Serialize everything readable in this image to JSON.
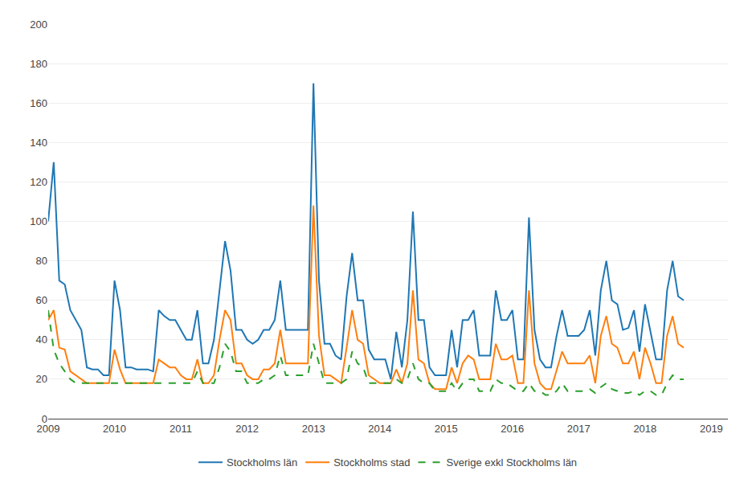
{
  "chart_data": {
    "type": "line",
    "x": [
      2009.0,
      2009.0833333333333,
      2009.1666666666667,
      2009.25,
      2009.3333333333333,
      2009.4166666666667,
      2009.5,
      2009.5833333333333,
      2009.6666666666667,
      2009.75,
      2009.8333333333333,
      2009.9166666666667,
      2010.0,
      2010.0833333333333,
      2010.1666666666667,
      2010.25,
      2010.3333333333333,
      2010.4166666666667,
      2010.5,
      2010.5833333333333,
      2010.6666666666667,
      2010.75,
      2010.8333333333333,
      2010.9166666666667,
      2011.0,
      2011.0833333333333,
      2011.1666666666667,
      2011.25,
      2011.3333333333333,
      2011.4166666666667,
      2011.5,
      2011.5833333333333,
      2011.6666666666667,
      2011.75,
      2011.8333333333333,
      2011.9166666666667,
      2012.0,
      2012.0833333333333,
      2012.1666666666667,
      2012.25,
      2012.3333333333333,
      2012.4166666666667,
      2012.5,
      2012.5833333333333,
      2012.6666666666667,
      2012.75,
      2012.8333333333333,
      2012.9166666666667,
      2013.0,
      2013.0833333333333,
      2013.1666666666667,
      2013.25,
      2013.3333333333333,
      2013.4166666666667,
      2013.5,
      2013.5833333333333,
      2013.6666666666667,
      2013.75,
      2013.8333333333333,
      2013.9166666666667,
      2014.0,
      2014.0833333333333,
      2014.1666666666667,
      2014.25,
      2014.3333333333333,
      2014.4166666666667,
      2014.5,
      2014.5833333333333,
      2014.6666666666667,
      2014.75,
      2014.8333333333333,
      2014.9166666666667,
      2015.0,
      2015.0833333333333,
      2015.1666666666667,
      2015.25,
      2015.3333333333333,
      2015.4166666666667,
      2015.5,
      2015.5833333333333,
      2015.6666666666667,
      2015.75,
      2015.8333333333333,
      2015.9166666666667,
      2016.0,
      2016.0833333333333,
      2016.1666666666667,
      2016.25,
      2016.3333333333333,
      2016.4166666666667,
      2016.5,
      2016.5833333333333,
      2016.6666666666667,
      2016.75,
      2016.8333333333333,
      2016.9166666666667,
      2017.0,
      2017.0833333333333,
      2017.1666666666667,
      2017.25,
      2017.3333333333333,
      2017.4166666666667,
      2017.5,
      2017.5833333333333,
      2017.6666666666667,
      2017.75,
      2017.8333333333333,
      2017.9166666666667,
      2018.0,
      2018.0833333333333,
      2018.1666666666667,
      2018.25,
      2018.3333333333333,
      2018.4166666666667,
      2018.5,
      2018.5833333333333
    ],
    "series": [
      {
        "name": "Stockholms län",
        "line_style": "solid",
        "values": [
          100,
          130,
          70,
          68,
          55,
          50,
          45,
          26,
          25,
          25,
          22,
          22,
          70,
          55,
          26,
          26,
          25,
          25,
          25,
          24,
          55,
          52,
          50,
          50,
          45,
          40,
          40,
          55,
          28,
          28,
          40,
          65,
          90,
          75,
          45,
          45,
          40,
          38,
          40,
          45,
          45,
          50,
          70,
          45,
          45,
          45,
          45,
          45,
          170,
          70,
          38,
          38,
          32,
          30,
          62,
          84,
          60,
          60,
          35,
          30,
          30,
          30,
          20,
          44,
          26,
          50,
          105,
          50,
          50,
          26,
          22,
          22,
          22,
          45,
          26,
          50,
          50,
          55,
          32,
          32,
          32,
          65,
          50,
          50,
          55,
          30,
          30,
          102,
          45,
          30,
          26,
          26,
          42,
          55,
          42,
          42,
          42,
          45,
          55,
          32,
          65,
          80,
          60,
          58,
          45,
          46,
          55,
          34,
          58,
          44,
          30,
          30,
          65,
          80,
          62,
          60
        ]
      },
      {
        "name": "Stockholms stad",
        "line_style": "solid",
        "values": [
          50,
          55,
          36,
          35,
          24,
          22,
          20,
          18,
          18,
          18,
          18,
          18,
          35,
          25,
          18,
          18,
          18,
          18,
          18,
          18,
          30,
          28,
          26,
          26,
          22,
          20,
          20,
          30,
          18,
          18,
          22,
          40,
          55,
          50,
          28,
          28,
          22,
          20,
          20,
          25,
          25,
          28,
          45,
          28,
          28,
          28,
          28,
          28,
          108,
          42,
          22,
          22,
          20,
          18,
          36,
          55,
          40,
          38,
          22,
          20,
          18,
          18,
          18,
          25,
          18,
          28,
          65,
          30,
          28,
          18,
          15,
          15,
          15,
          26,
          18,
          28,
          32,
          30,
          20,
          20,
          20,
          38,
          30,
          30,
          32,
          18,
          18,
          65,
          28,
          18,
          15,
          15,
          25,
          34,
          28,
          28,
          28,
          28,
          32,
          18,
          42,
          52,
          38,
          36,
          28,
          28,
          34,
          20,
          36,
          28,
          18,
          18,
          42,
          52,
          38,
          36
        ]
      },
      {
        "name": "Sverige exkl Stockholms län",
        "line_style": "dashed",
        "values": [
          55,
          35,
          28,
          24,
          20,
          18,
          18,
          18,
          18,
          18,
          18,
          18,
          18,
          18,
          18,
          18,
          18,
          18,
          18,
          18,
          18,
          18,
          18,
          18,
          18,
          18,
          18,
          24,
          18,
          18,
          18,
          26,
          38,
          34,
          24,
          24,
          18,
          18,
          18,
          20,
          20,
          22,
          32,
          22,
          22,
          22,
          22,
          22,
          38,
          28,
          18,
          18,
          18,
          18,
          20,
          34,
          28,
          26,
          18,
          18,
          18,
          18,
          18,
          20,
          18,
          20,
          28,
          20,
          18,
          18,
          14,
          14,
          14,
          18,
          14,
          18,
          20,
          20,
          14,
          14,
          14,
          20,
          18,
          18,
          16,
          14,
          14,
          18,
          14,
          14,
          12,
          12,
          14,
          18,
          14,
          14,
          14,
          14,
          15,
          13,
          16,
          18,
          15,
          14,
          13,
          13,
          14,
          12,
          14,
          14,
          12,
          12,
          18,
          22,
          20,
          20
        ]
      }
    ],
    "xlim": [
      2009.0,
      2019.25
    ],
    "xticks": [
      2009,
      2010,
      2011,
      2012,
      2013,
      2014,
      2015,
      2016,
      2017,
      2018,
      2019
    ],
    "ylim": [
      0,
      200
    ],
    "yticks": [
      0,
      20,
      40,
      60,
      80,
      100,
      120,
      140,
      160,
      180,
      200
    ],
    "grid": "y",
    "legend": "bottom"
  }
}
